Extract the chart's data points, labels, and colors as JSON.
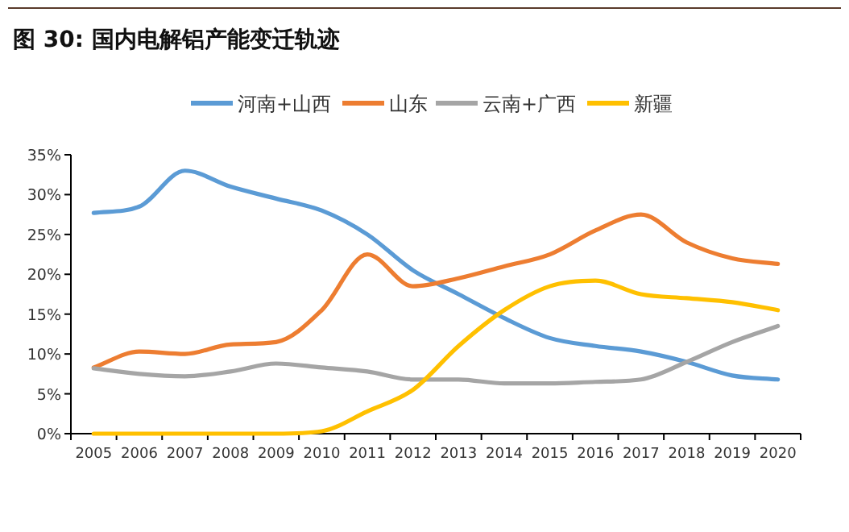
{
  "chart_data": {
    "type": "line",
    "title": "图 30: 国内电解铝产能变迁轨迹",
    "categories": [
      "2005",
      "2006",
      "2007",
      "2008",
      "2009",
      "2010",
      "2011",
      "2012",
      "2013",
      "2014",
      "2015",
      "2016",
      "2017",
      "2018",
      "2019",
      "2020"
    ],
    "series": [
      {
        "name": "河南+山西",
        "color": "#5b9bd5",
        "values": [
          27.7,
          28.5,
          33,
          31,
          29.5,
          28,
          25,
          20.5,
          17.5,
          14.5,
          12,
          11,
          10.3,
          9,
          7.3,
          6.8
        ]
      },
      {
        "name": "山东",
        "color": "#ed7d31",
        "values": [
          8.3,
          10.3,
          10,
          11.2,
          11.5,
          15.5,
          22.5,
          18.5,
          19.5,
          21,
          22.5,
          25.5,
          27.5,
          24,
          22,
          21.3
        ]
      },
      {
        "name": "云南+广西",
        "color": "#a5a5a5",
        "values": [
          8.2,
          7.5,
          7.2,
          7.8,
          8.8,
          8.3,
          7.8,
          6.8,
          6.8,
          6.3,
          6.3,
          6.5,
          6.8,
          9,
          11.5,
          13.5
        ]
      },
      {
        "name": "新疆",
        "color": "#ffc000",
        "values": [
          0,
          0,
          0,
          0,
          0,
          0.3,
          2.8,
          5.5,
          11,
          15.5,
          18.5,
          19.2,
          17.5,
          17,
          16.5,
          15.5
        ]
      }
    ],
    "ylim": [
      0,
      35
    ],
    "yticks": [
      {
        "value": 0,
        "label": "0%"
      },
      {
        "value": 5,
        "label": "5%"
      },
      {
        "value": 10,
        "label": "10%"
      },
      {
        "value": 15,
        "label": "15%"
      },
      {
        "value": 20,
        "label": "20%"
      },
      {
        "value": 25,
        "label": "25%"
      },
      {
        "value": 30,
        "label": "30%"
      },
      {
        "value": 35,
        "label": "35%"
      }
    ],
    "legend": "top",
    "marker": "none",
    "line_style": "solid",
    "grid": false
  }
}
